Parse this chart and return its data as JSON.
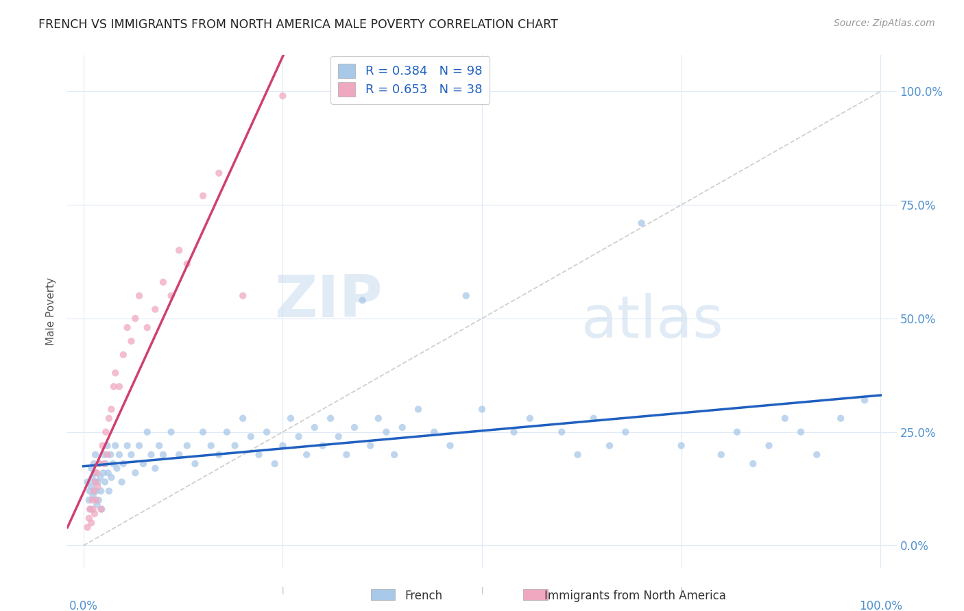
{
  "title": "FRENCH VS IMMIGRANTS FROM NORTH AMERICA MALE POVERTY CORRELATION CHART",
  "source": "Source: ZipAtlas.com",
  "ylabel": "Male Poverty",
  "ytick_vals": [
    0.0,
    0.25,
    0.5,
    0.75,
    1.0
  ],
  "ytick_labels": [
    "0.0%",
    "25.0%",
    "50.0%",
    "75.0%",
    "100.0%"
  ],
  "xlim": [
    -0.02,
    1.02
  ],
  "ylim": [
    -0.05,
    1.08
  ],
  "legend_R1": "0.384",
  "legend_N1": "98",
  "legend_R2": "0.653",
  "legend_N2": "38",
  "watermark_zip": "ZIP",
  "watermark_atlas": "atlas",
  "series1_color": "#a8c8e8",
  "series2_color": "#f0a8c0",
  "line1_color": "#2060c0",
  "line2_color": "#d04070",
  "diag_color": "#bbbbbb",
  "grid_color": "#e0eaf8",
  "tick_color": "#5090d0",
  "bottom_label1": "French",
  "bottom_label2": "Immigrants from North America",
  "french_x": [
    0.005,
    0.007,
    0.008,
    0.009,
    0.01,
    0.01,
    0.011,
    0.012,
    0.013,
    0.014,
    0.015,
    0.015,
    0.016,
    0.017,
    0.018,
    0.019,
    0.02,
    0.021,
    0.022,
    0.023,
    0.025,
    0.026,
    0.027,
    0.028,
    0.03,
    0.031,
    0.032,
    0.034,
    0.035,
    0.037,
    0.04,
    0.042,
    0.045,
    0.048,
    0.05,
    0.055,
    0.06,
    0.065,
    0.07,
    0.075,
    0.08,
    0.085,
    0.09,
    0.095,
    0.1,
    0.11,
    0.12,
    0.13,
    0.14,
    0.15,
    0.16,
    0.17,
    0.18,
    0.19,
    0.2,
    0.21,
    0.22,
    0.23,
    0.24,
    0.25,
    0.26,
    0.27,
    0.28,
    0.29,
    0.3,
    0.31,
    0.32,
    0.33,
    0.34,
    0.35,
    0.36,
    0.37,
    0.38,
    0.39,
    0.4,
    0.42,
    0.44,
    0.46,
    0.48,
    0.5,
    0.54,
    0.56,
    0.6,
    0.62,
    0.64,
    0.66,
    0.68,
    0.7,
    0.75,
    0.8,
    0.82,
    0.84,
    0.86,
    0.88,
    0.9,
    0.92,
    0.95,
    0.98
  ],
  "french_y": [
    0.14,
    0.1,
    0.12,
    0.08,
    0.17,
    0.13,
    0.15,
    0.11,
    0.18,
    0.14,
    0.16,
    0.2,
    0.12,
    0.09,
    0.14,
    0.1,
    0.18,
    0.15,
    0.12,
    0.08,
    0.16,
    0.2,
    0.14,
    0.18,
    0.22,
    0.16,
    0.12,
    0.2,
    0.15,
    0.18,
    0.22,
    0.17,
    0.2,
    0.14,
    0.18,
    0.22,
    0.2,
    0.16,
    0.22,
    0.18,
    0.25,
    0.2,
    0.17,
    0.22,
    0.2,
    0.25,
    0.2,
    0.22,
    0.18,
    0.25,
    0.22,
    0.2,
    0.25,
    0.22,
    0.28,
    0.24,
    0.2,
    0.25,
    0.18,
    0.22,
    0.28,
    0.24,
    0.2,
    0.26,
    0.22,
    0.28,
    0.24,
    0.2,
    0.26,
    0.54,
    0.22,
    0.28,
    0.25,
    0.2,
    0.26,
    0.3,
    0.25,
    0.22,
    0.55,
    0.3,
    0.25,
    0.28,
    0.25,
    0.2,
    0.28,
    0.22,
    0.25,
    0.71,
    0.22,
    0.2,
    0.25,
    0.18,
    0.22,
    0.28,
    0.25,
    0.2,
    0.28,
    0.32
  ],
  "immig_x": [
    0.005,
    0.007,
    0.008,
    0.01,
    0.011,
    0.012,
    0.013,
    0.014,
    0.015,
    0.016,
    0.017,
    0.018,
    0.02,
    0.022,
    0.024,
    0.026,
    0.028,
    0.03,
    0.032,
    0.035,
    0.038,
    0.04,
    0.045,
    0.05,
    0.055,
    0.06,
    0.065,
    0.07,
    0.08,
    0.09,
    0.1,
    0.11,
    0.12,
    0.13,
    0.15,
    0.17,
    0.2,
    0.25
  ],
  "immig_y": [
    0.04,
    0.06,
    0.08,
    0.05,
    0.1,
    0.08,
    0.12,
    0.07,
    0.14,
    0.1,
    0.16,
    0.13,
    0.18,
    0.08,
    0.22,
    0.18,
    0.25,
    0.2,
    0.28,
    0.3,
    0.35,
    0.38,
    0.35,
    0.42,
    0.48,
    0.45,
    0.5,
    0.55,
    0.48,
    0.52,
    0.58,
    0.55,
    0.65,
    0.62,
    0.77,
    0.82,
    0.55,
    0.99
  ]
}
